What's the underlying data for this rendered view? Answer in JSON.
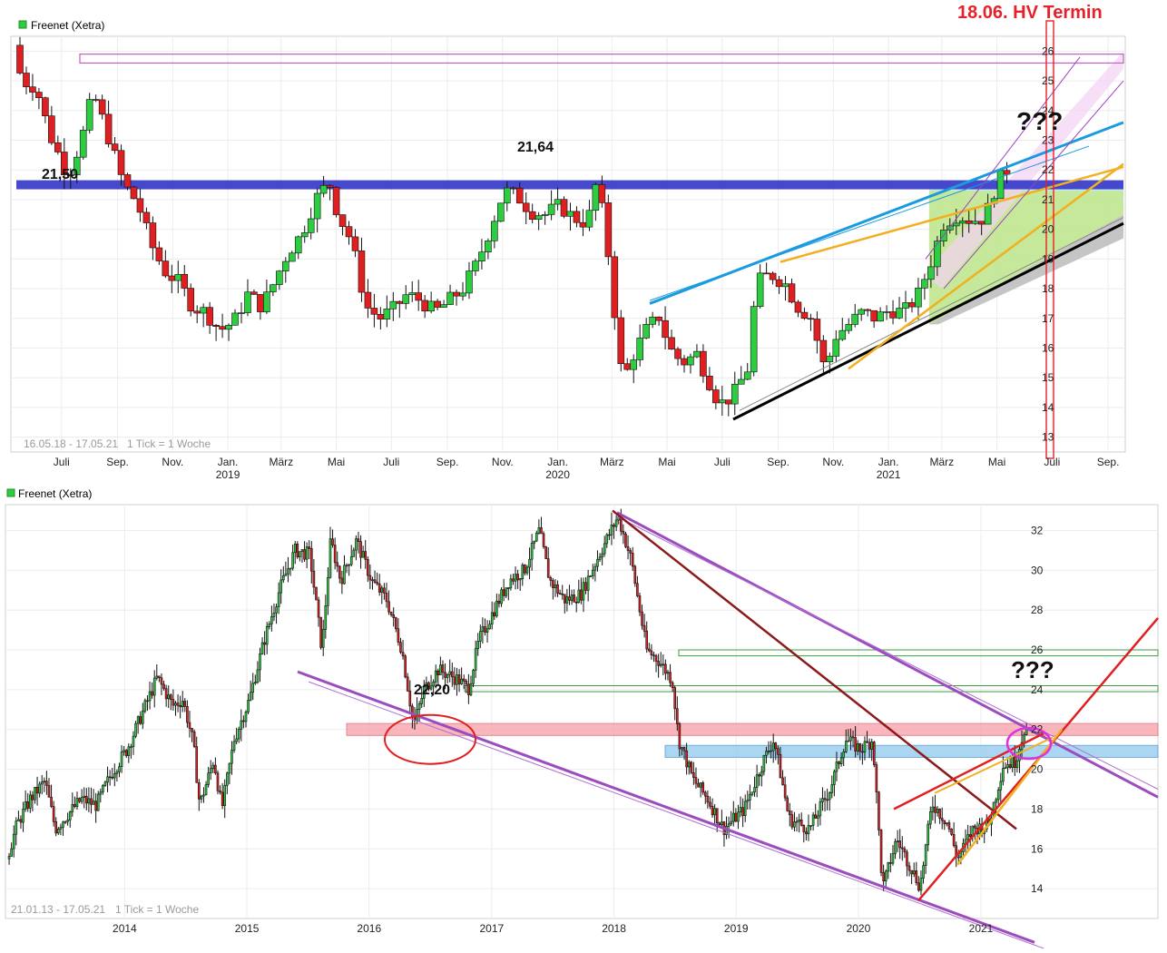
{
  "chart_data": [
    {
      "type": "candlestick",
      "title": "Freenet (Xetra)",
      "range_label": "16.05.18 - 17.05.21",
      "tick_label": "1 Tick = 1 Woche",
      "x_tick_labels": [
        "Juli",
        "Sep.",
        "Nov.",
        "Jan.",
        "März",
        "Mai",
        "Juli",
        "Sep.",
        "Nov.",
        "Jan.",
        "März",
        "Mai",
        "Juli",
        "Sep.",
        "Nov.",
        "Jan.",
        "März",
        "Mai",
        "Juli",
        "Sep."
      ],
      "year_labels": [
        "2019",
        "2020",
        "2021"
      ],
      "y_ticks": [
        13,
        14,
        15,
        16,
        17,
        18,
        19,
        20,
        21,
        22,
        23,
        24,
        25,
        26
      ],
      "ylim": [
        12.5,
        26.5
      ],
      "price_path": [
        [
          "2018-05-16",
          26.2
        ],
        [
          "2018-05-25",
          25.0
        ],
        [
          "2018-06-10",
          24.8
        ],
        [
          "2018-06-25",
          23.2
        ],
        [
          "2018-07-15",
          21.8
        ],
        [
          "2018-07-30",
          23.0
        ],
        [
          "2018-08-12",
          24.6
        ],
        [
          "2018-08-28",
          23.2
        ],
        [
          "2018-09-15",
          21.5
        ],
        [
          "2018-09-30",
          20.9
        ],
        [
          "2018-10-15",
          19.5
        ],
        [
          "2018-10-30",
          18.6
        ],
        [
          "2018-11-15",
          18.2
        ],
        [
          "2018-11-30",
          17.4
        ],
        [
          "2018-12-15",
          17.2
        ],
        [
          "2018-12-30",
          16.6
        ],
        [
          "2019-01-15",
          16.9
        ],
        [
          "2019-01-30",
          17.8
        ],
        [
          "2019-02-15",
          17.4
        ],
        [
          "2019-02-28",
          18.2
        ],
        [
          "2019-03-15",
          19.2
        ],
        [
          "2019-03-30",
          19.8
        ],
        [
          "2019-04-15",
          21.0
        ],
        [
          "2019-04-30",
          21.6
        ],
        [
          "2019-05-10",
          20.5
        ],
        [
          "2019-05-25",
          19.6
        ],
        [
          "2019-06-10",
          17.4
        ],
        [
          "2019-06-25",
          17.0
        ],
        [
          "2019-07-10",
          17.3
        ],
        [
          "2019-07-25",
          17.8
        ],
        [
          "2019-08-10",
          17.6
        ],
        [
          "2019-08-25",
          17.2
        ],
        [
          "2019-09-10",
          17.6
        ],
        [
          "2019-09-25",
          18.0
        ],
        [
          "2019-10-10",
          18.8
        ],
        [
          "2019-10-25",
          20.0
        ],
        [
          "2019-11-10",
          21.3
        ],
        [
          "2019-11-25",
          21.1
        ],
        [
          "2019-12-10",
          20.6
        ],
        [
          "2019-12-25",
          20.5
        ],
        [
          "2020-01-10",
          20.8
        ],
        [
          "2020-01-25",
          20.4
        ],
        [
          "2020-02-10",
          20.2
        ],
        [
          "2020-02-20",
          21.6
        ],
        [
          "2020-03-01",
          20.0
        ],
        [
          "2020-03-10",
          17.5
        ],
        [
          "2020-03-20",
          14.8
        ],
        [
          "2020-04-01",
          15.8
        ],
        [
          "2020-04-15",
          16.6
        ],
        [
          "2020-04-30",
          17.1
        ],
        [
          "2020-05-10",
          16.0
        ],
        [
          "2020-05-25",
          15.5
        ],
        [
          "2020-06-10",
          15.8
        ],
        [
          "2020-06-25",
          14.8
        ],
        [
          "2020-07-05",
          14.1
        ],
        [
          "2020-07-20",
          14.4
        ],
        [
          "2020-08-05",
          15.3
        ],
        [
          "2020-08-15",
          18.2
        ],
        [
          "2020-08-30",
          18.5
        ],
        [
          "2020-09-15",
          18.2
        ],
        [
          "2020-09-30",
          17.4
        ],
        [
          "2020-10-15",
          17.0
        ],
        [
          "2020-10-30",
          15.2
        ],
        [
          "2020-11-10",
          16.4
        ],
        [
          "2020-11-25",
          16.8
        ],
        [
          "2020-12-10",
          17.2
        ],
        [
          "2020-12-25",
          17.0
        ],
        [
          "2021-01-10",
          17.3
        ],
        [
          "2021-01-25",
          17.2
        ],
        [
          "2021-02-10",
          17.8
        ],
        [
          "2021-02-25",
          19.0
        ],
        [
          "2021-03-10",
          20.2
        ],
        [
          "2021-03-25",
          20.5
        ],
        [
          "2021-04-10",
          20.3
        ],
        [
          "2021-04-25",
          20.4
        ],
        [
          "2021-05-05",
          21.3
        ],
        [
          "2021-05-17",
          22.0
        ]
      ],
      "horizontal_levels": [
        21.5,
        21.64,
        25.6
      ],
      "annotations": [
        "21,50",
        "21,64",
        "???"
      ],
      "event": "18.06. HV Termin"
    },
    {
      "type": "candlestick",
      "title": "Freenet (Xetra)",
      "range_label": "21.01.13 - 17.05.21",
      "tick_label": "1 Tick = 1 Woche",
      "x_tick_labels": [
        "2014",
        "2015",
        "2016",
        "2017",
        "2018",
        "2019",
        "2020",
        "2021"
      ],
      "y_ticks": [
        14,
        16,
        18,
        20,
        22,
        24,
        26,
        28,
        30,
        32
      ],
      "ylim": [
        12.5,
        33.3
      ],
      "price_path": [
        [
          "2013-01-21",
          15.5
        ],
        [
          "2013-02-20",
          17.2
        ],
        [
          "2013-04-01",
          18.5
        ],
        [
          "2013-05-15",
          19.4
        ],
        [
          "2013-06-15",
          17.0
        ],
        [
          "2013-07-15",
          17.6
        ],
        [
          "2013-09-01",
          18.5
        ],
        [
          "2013-10-15",
          18.2
        ],
        [
          "2013-11-30",
          19.8
        ],
        [
          "2014-01-15",
          21.0
        ],
        [
          "2014-03-01",
          22.8
        ],
        [
          "2014-04-15",
          24.6
        ],
        [
          "2014-06-01",
          23.2
        ],
        [
          "2014-07-01",
          23.5
        ],
        [
          "2014-08-01",
          21.3
        ],
        [
          "2014-08-20",
          18.2
        ],
        [
          "2014-10-01",
          20.5
        ],
        [
          "2014-10-25",
          18.0
        ],
        [
          "2014-12-01",
          21.5
        ],
        [
          "2015-01-15",
          23.5
        ],
        [
          "2015-03-01",
          26.5
        ],
        [
          "2015-04-15",
          29.0
        ],
        [
          "2015-06-01",
          31.0
        ],
        [
          "2015-07-15",
          30.8
        ],
        [
          "2015-08-20",
          26.0
        ],
        [
          "2015-09-15",
          31.5
        ],
        [
          "2015-10-15",
          29.5
        ],
        [
          "2015-12-01",
          31.5
        ],
        [
          "2016-01-15",
          29.5
        ],
        [
          "2016-03-01",
          28.5
        ],
        [
          "2016-04-15",
          26.0
        ],
        [
          "2016-05-20",
          22.2
        ],
        [
          "2016-06-20",
          24.0
        ],
        [
          "2016-08-01",
          25.0
        ],
        [
          "2016-10-01",
          24.5
        ],
        [
          "2016-10-30",
          24.0
        ],
        [
          "2016-12-01",
          26.5
        ],
        [
          "2017-01-15",
          28.0
        ],
        [
          "2017-03-01",
          29.5
        ],
        [
          "2017-04-15",
          30.0
        ],
        [
          "2017-05-30",
          32.0
        ],
        [
          "2017-06-30",
          29.5
        ],
        [
          "2017-08-15",
          28.5
        ],
        [
          "2017-10-01",
          28.8
        ],
        [
          "2017-12-01",
          31.0
        ],
        [
          "2018-01-20",
          32.7
        ],
        [
          "2018-03-01",
          30.5
        ],
        [
          "2018-04-15",
          26.0
        ],
        [
          "2018-05-20",
          25.5
        ],
        [
          "2018-07-01",
          24.5
        ],
        [
          "2018-07-20",
          21.5
        ],
        [
          "2018-09-01",
          19.5
        ],
        [
          "2018-10-15",
          18.5
        ],
        [
          "2018-12-01",
          17.0
        ],
        [
          "2019-02-01",
          18.0
        ],
        [
          "2019-04-01",
          20.5
        ],
        [
          "2019-05-01",
          21.5
        ],
        [
          "2019-06-15",
          17.5
        ],
        [
          "2019-08-15",
          17.0
        ],
        [
          "2019-10-15",
          19.0
        ],
        [
          "2019-12-01",
          21.5
        ],
        [
          "2020-01-15",
          21.0
        ],
        [
          "2020-02-20",
          21.5
        ],
        [
          "2020-03-20",
          14.0
        ],
        [
          "2020-05-01",
          16.5
        ],
        [
          "2020-06-15",
          15.0
        ],
        [
          "2020-07-10",
          14.1
        ],
        [
          "2020-08-15",
          18.3
        ],
        [
          "2020-09-30",
          17.3
        ],
        [
          "2020-10-30",
          15.5
        ],
        [
          "2020-12-15",
          17.0
        ],
        [
          "2021-01-31",
          17.2
        ],
        [
          "2021-03-15",
          20.2
        ],
        [
          "2021-04-20",
          20.4
        ],
        [
          "2021-05-17",
          22.0
        ]
      ],
      "horizontal_zones": [
        [
          21.7,
          22.3
        ],
        [
          20.6,
          21.2
        ]
      ],
      "horizontal_levels": [
        24.0,
        25.9
      ],
      "annotations": [
        "22,20",
        "???"
      ]
    }
  ]
}
